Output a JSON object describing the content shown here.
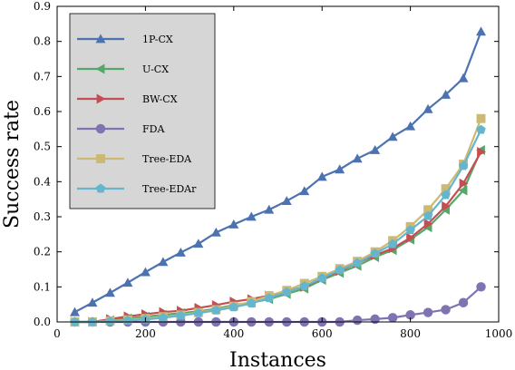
{
  "chart_data": {
    "type": "line",
    "title": "",
    "xlabel": "Instances",
    "ylabel": "Success rate",
    "xlim": [
      0,
      1000
    ],
    "ylim": [
      0,
      0.9
    ],
    "xticks": [
      0,
      200,
      400,
      600,
      800,
      1000
    ],
    "yticks": [
      0.0,
      0.1,
      0.2,
      0.3,
      0.4,
      0.5,
      0.6,
      0.7,
      0.8,
      0.9
    ],
    "xtick_labels": [
      "0",
      "200",
      "400",
      "600",
      "800",
      "1000"
    ],
    "ytick_labels": [
      "0.0",
      "0.1",
      "0.2",
      "0.3",
      "0.4",
      "0.5",
      "0.6",
      "0.7",
      "0.8",
      "0.9"
    ],
    "grid": false,
    "legend_position": "top-left",
    "x": [
      40,
      80,
      120,
      160,
      200,
      240,
      280,
      320,
      360,
      400,
      440,
      480,
      520,
      560,
      600,
      640,
      680,
      720,
      760,
      800,
      840,
      880,
      920,
      960
    ],
    "series": [
      {
        "name": "1P-CX",
        "marker": "triangle-up",
        "color": "#4c72b0",
        "values": [
          0.028,
          0.055,
          0.083,
          0.112,
          0.142,
          0.171,
          0.198,
          0.223,
          0.255,
          0.278,
          0.3,
          0.32,
          0.345,
          0.373,
          0.414,
          0.435,
          0.466,
          0.49,
          0.528,
          0.558,
          0.607,
          0.648,
          0.695,
          0.828
        ]
      },
      {
        "name": "U-CX",
        "marker": "triangle-left",
        "color": "#55a868",
        "values": [
          0.0,
          0.0,
          0.005,
          0.01,
          0.015,
          0.02,
          0.025,
          0.03,
          0.038,
          0.048,
          0.055,
          0.065,
          0.08,
          0.095,
          0.12,
          0.14,
          0.16,
          0.185,
          0.205,
          0.235,
          0.27,
          0.32,
          0.375,
          0.49
        ]
      },
      {
        "name": "BW-CX",
        "marker": "triangle-right",
        "color": "#c44e52",
        "values": [
          0.0,
          0.0,
          0.008,
          0.016,
          0.022,
          0.028,
          0.032,
          0.04,
          0.048,
          0.058,
          0.065,
          0.075,
          0.088,
          0.1,
          0.125,
          0.145,
          0.168,
          0.19,
          0.21,
          0.24,
          0.28,
          0.33,
          0.395,
          0.485
        ]
      },
      {
        "name": "FDA",
        "marker": "circle",
        "color": "#8172b2",
        "values": [
          0.0,
          0.0,
          0.0,
          0.0,
          0.0,
          0.0,
          0.0,
          0.0,
          0.0,
          0.0,
          0.0,
          0.0,
          0.0,
          0.0,
          0.0,
          0.0,
          0.005,
          0.008,
          0.012,
          0.02,
          0.027,
          0.035,
          0.055,
          0.1
        ]
      },
      {
        "name": "Tree-EDA",
        "marker": "square",
        "color": "#ccb974",
        "values": [
          0.0,
          0.0,
          0.003,
          0.006,
          0.01,
          0.015,
          0.02,
          0.027,
          0.035,
          0.045,
          0.058,
          0.075,
          0.09,
          0.11,
          0.13,
          0.152,
          0.173,
          0.2,
          0.232,
          0.272,
          0.32,
          0.38,
          0.45,
          0.58
        ]
      },
      {
        "name": "Tree-EDAr",
        "marker": "pentagon",
        "color": "#64b5cd",
        "values": [
          0.0,
          0.0,
          0.002,
          0.004,
          0.007,
          0.012,
          0.018,
          0.025,
          0.033,
          0.042,
          0.053,
          0.068,
          0.085,
          0.102,
          0.125,
          0.148,
          0.168,
          0.195,
          0.222,
          0.262,
          0.302,
          0.362,
          0.445,
          0.548
        ]
      }
    ]
  }
}
